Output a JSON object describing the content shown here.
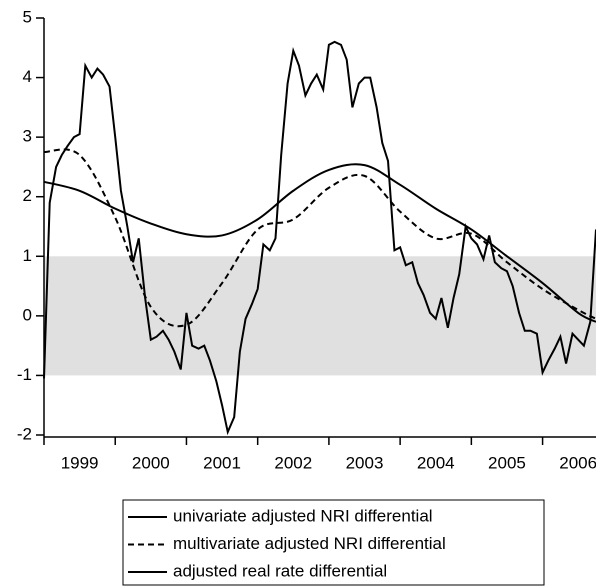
{
  "chart_data": {
    "type": "line",
    "xlim": [
      1999,
      2006.75
    ],
    "xticks": [
      1999,
      2000,
      2001,
      2002,
      2003,
      2004,
      2005,
      2006
    ],
    "ylim": [
      -2,
      5
    ],
    "yticks": [
      -2,
      -1,
      0,
      1,
      2,
      3,
      4,
      5
    ],
    "shade": [
      -1,
      1
    ],
    "shade_color": "#e0e0e0",
    "series": [
      {
        "name": "univariate adjusted NRI differential",
        "color": "#000000",
        "dash": false,
        "smooth": false,
        "x": [
          1999,
          1999.08,
          1999.17,
          1999.25,
          1999.33,
          1999.42,
          1999.5,
          1999.58,
          1999.67,
          1999.75,
          1999.83,
          1999.92,
          2000,
          2000.08,
          2000.17,
          2000.25,
          2000.33,
          2000.42,
          2000.5,
          2000.58,
          2000.67,
          2000.75,
          2000.83,
          2000.92,
          2001,
          2001.08,
          2001.17,
          2001.25,
          2001.33,
          2001.42,
          2001.5,
          2001.58,
          2001.67,
          2001.75,
          2001.83,
          2001.92,
          2002,
          2002.08,
          2002.17,
          2002.25,
          2002.33,
          2002.42,
          2002.5,
          2002.58,
          2002.67,
          2002.75,
          2002.83,
          2002.92,
          2003,
          2003.08,
          2003.17,
          2003.25,
          2003.33,
          2003.42,
          2003.5,
          2003.58,
          2003.67,
          2003.75,
          2003.83,
          2003.92,
          2004,
          2004.08,
          2004.17,
          2004.25,
          2004.33,
          2004.42,
          2004.5,
          2004.58,
          2004.67,
          2004.75,
          2004.83,
          2004.92,
          2005,
          2005.08,
          2005.17,
          2005.25,
          2005.33,
          2005.42,
          2005.5,
          2005.58,
          2005.67,
          2005.75,
          2005.83,
          2005.92,
          2006,
          2006.08,
          2006.17,
          2006.25,
          2006.33,
          2006.42,
          2006.5,
          2006.58,
          2006.67,
          2006.75
        ],
        "values": [
          -1.05,
          1.9,
          2.5,
          2.7,
          2.85,
          3.0,
          3.05,
          4.2,
          4.0,
          4.15,
          4.05,
          3.85,
          3.0,
          2.1,
          1.5,
          0.9,
          1.3,
          0.3,
          -0.4,
          -0.35,
          -0.25,
          -0.4,
          -0.6,
          -0.9,
          0.05,
          -0.5,
          -0.55,
          -0.5,
          -0.75,
          -1.1,
          -1.5,
          -1.95,
          -1.7,
          -0.6,
          -0.05,
          0.2,
          0.45,
          1.2,
          1.1,
          1.3,
          2.7,
          3.9,
          4.45,
          4.2,
          3.7,
          3.9,
          4.05,
          3.8,
          4.55,
          4.6,
          4.55,
          4.3,
          3.5,
          3.9,
          4.0,
          4.0,
          3.5,
          2.9,
          2.6,
          1.1,
          1.15,
          0.85,
          0.9,
          0.55,
          0.35,
          0.05,
          -0.05,
          0.3,
          -0.2,
          0.3,
          0.7,
          1.5,
          1.3,
          1.2,
          0.95,
          1.35,
          0.9,
          0.8,
          0.75,
          0.5,
          0.05,
          -0.25,
          -0.25,
          -0.3,
          -0.95,
          -0.75,
          -0.55,
          -0.35,
          -0.8,
          -0.3,
          -0.4,
          -0.5,
          -0.1,
          1.45
        ]
      },
      {
        "name": "multivariate adjusted NRI differential",
        "color": "#000000",
        "dash": true,
        "smooth": true,
        "x": [
          1999,
          1999.5,
          2000,
          2000.5,
          2001,
          2001.5,
          2002,
          2002.5,
          2003,
          2003.5,
          2004,
          2004.5,
          2005,
          2005.5,
          2006,
          2006.5,
          2006.75
        ],
        "values": [
          2.75,
          2.7,
          1.65,
          0.15,
          -0.15,
          0.55,
          1.45,
          1.62,
          2.15,
          2.35,
          1.75,
          1.3,
          1.38,
          0.9,
          0.45,
          0.1,
          -0.05
        ]
      },
      {
        "name": "adjusted real rate differential",
        "color": "#000000",
        "dash": false,
        "smooth": true,
        "x": [
          1999,
          1999.5,
          2000,
          2000.5,
          2001,
          2001.5,
          2002,
          2002.5,
          2003,
          2003.5,
          2004,
          2004.5,
          2005,
          2005.5,
          2006,
          2006.5,
          2006.75
        ],
        "values": [
          2.25,
          2.1,
          1.8,
          1.55,
          1.37,
          1.35,
          1.62,
          2.1,
          2.45,
          2.53,
          2.2,
          1.8,
          1.45,
          1.0,
          0.55,
          0.05,
          -0.1
        ]
      }
    ]
  }
}
